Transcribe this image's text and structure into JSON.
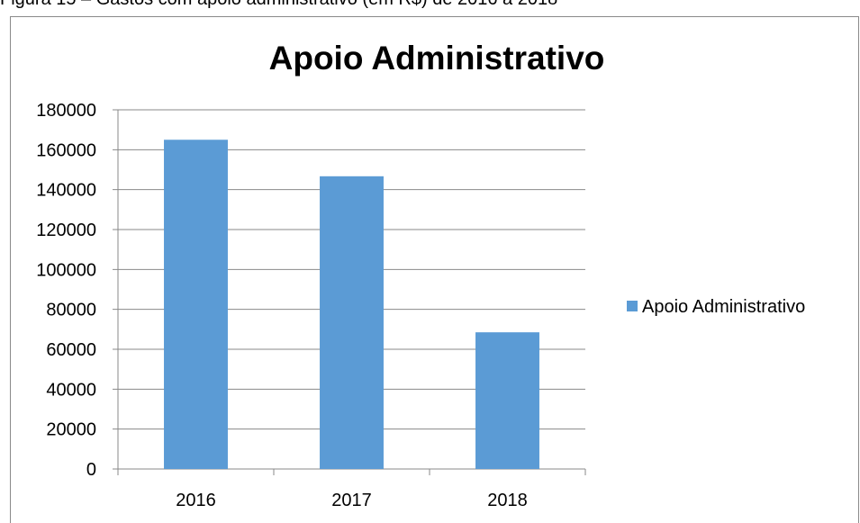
{
  "caption": "Figura 15 – Gastos com apoio administrativo (em R$) de 2016 a 2018",
  "colors": {
    "bar": "#5b9bd5",
    "grid": "#898989",
    "axis": "#898989"
  },
  "chart_data": {
    "type": "bar",
    "title": "Apoio Administrativo",
    "categories": [
      "2016",
      "2017",
      "2018"
    ],
    "series": [
      {
        "name": "Apoio Administrativo",
        "values": [
          165000,
          146700,
          68500
        ]
      }
    ],
    "xlabel": "",
    "ylabel": "",
    "ylim": [
      0,
      180000
    ],
    "yticks": [
      "0",
      "20000",
      "40000",
      "60000",
      "80000",
      "100000",
      "120000",
      "140000",
      "160000",
      "180000"
    ],
    "grid": true,
    "legend": "right"
  }
}
